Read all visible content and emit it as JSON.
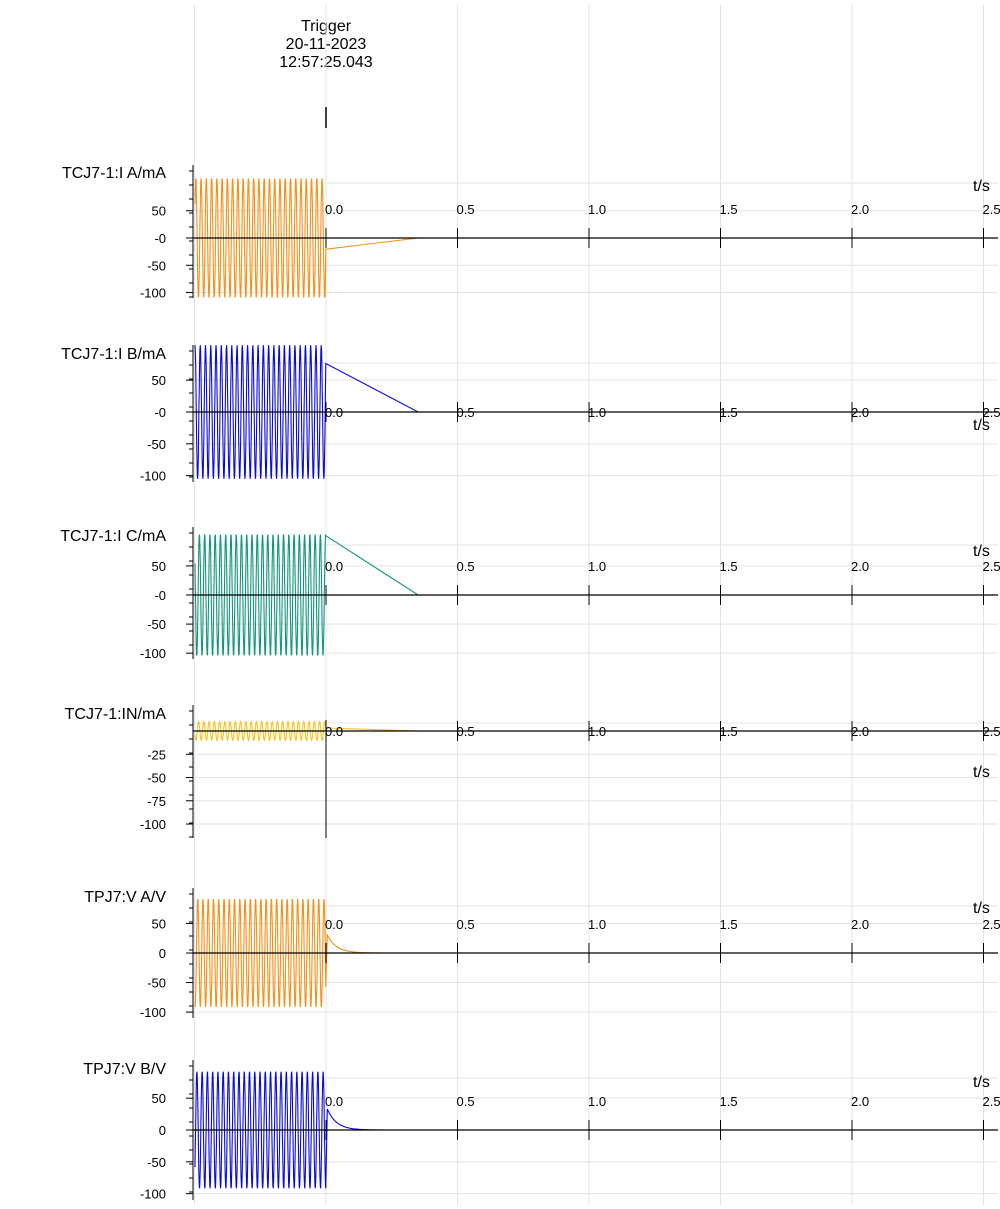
{
  "trigger": {
    "label": "Trigger",
    "date": "20-11-2023",
    "time": "12:57:25.043"
  },
  "colors": {
    "grid": "#e3e3e3",
    "axis": "#000000"
  },
  "chart_data": [
    {
      "type": "line",
      "ylabel": "TCJ7-1:I A/mA",
      "xlabel": "t/s",
      "x_ticks": [
        "0.0",
        "0.5",
        "1.0",
        "1.5",
        "2.0",
        "2.5"
      ],
      "y_ticks": [
        "50",
        "-0",
        "-50",
        "-100"
      ],
      "y_tick_values": [
        50,
        0,
        -50,
        -100
      ],
      "ylim": [
        -110,
        120
      ],
      "xlim": [
        -0.5,
        2.55
      ],
      "grid": true,
      "series": [
        {
          "color": "#f39019",
          "pre_amplitude": 110,
          "pre_offset": 0,
          "post_value": 0
        }
      ]
    },
    {
      "type": "line",
      "ylabel": "TCJ7-1:I B/mA",
      "xlabel": "t/s",
      "x_ticks": [
        "0.0",
        "0.5",
        "1.0",
        "1.5",
        "2.0",
        "2.5"
      ],
      "y_ticks": [
        "50",
        "-0",
        "-50",
        "-100"
      ],
      "y_tick_values": [
        50,
        0,
        -50,
        -100
      ],
      "ylim": [
        -110,
        120
      ],
      "xlim": [
        -0.5,
        2.55
      ],
      "grid": true,
      "series": [
        {
          "color": "#0a0ad6",
          "pre_amplitude": 105,
          "pre_offset": 0,
          "post_value": 0
        }
      ]
    },
    {
      "type": "line",
      "ylabel": "TCJ7-1:I C/mA",
      "xlabel": "t/s",
      "x_ticks": [
        "0.0",
        "0.5",
        "1.0",
        "1.5",
        "2.0",
        "2.5"
      ],
      "y_ticks": [
        "50",
        "-0",
        "-50",
        "-100"
      ],
      "y_tick_values": [
        50,
        0,
        -50,
        -100
      ],
      "ylim": [
        -110,
        120
      ],
      "xlim": [
        -0.5,
        2.55
      ],
      "grid": true,
      "series": [
        {
          "color": "#13957a",
          "pre_amplitude": 105,
          "pre_offset": 0,
          "post_value": 0
        }
      ]
    },
    {
      "type": "line",
      "ylabel": "TCJ7-1:IN/mA",
      "xlabel": "t/s",
      "x_ticks": [
        "0.0",
        "0.5",
        "1.0",
        "1.5",
        "2.0",
        "2.5"
      ],
      "y_ticks": [
        "-25",
        "-50",
        "-75",
        "-100"
      ],
      "y_tick_values": [
        -25,
        -50,
        -75,
        -100
      ],
      "ylim": [
        -115,
        30
      ],
      "xlim": [
        -0.5,
        2.55
      ],
      "grid": true,
      "series": [
        {
          "color": "#f5c518",
          "pre_amplitude": 10,
          "pre_offset": 0,
          "post_value": 0
        }
      ]
    },
    {
      "type": "line",
      "ylabel": "TPJ7:V A/V",
      "xlabel": "t/s",
      "x_ticks": [
        "0.0",
        "0.5",
        "1.0",
        "1.5",
        "2.0",
        "2.5"
      ],
      "y_ticks": [
        "50",
        "0",
        "-50",
        "-100"
      ],
      "y_tick_values": [
        50,
        0,
        -50,
        -100
      ],
      "ylim": [
        -110,
        115
      ],
      "xlim": [
        -0.5,
        2.55
      ],
      "grid": true,
      "series": [
        {
          "color": "#f39019",
          "pre_amplitude": 92,
          "pre_offset": 0,
          "post_value": 0,
          "decay_start": 35
        }
      ]
    },
    {
      "type": "line",
      "ylabel": "TPJ7:V B/V",
      "xlabel": "t/s",
      "x_ticks": [
        "0.0",
        "0.5",
        "1.0",
        "1.5",
        "2.0",
        "2.5"
      ],
      "y_ticks": [
        "50",
        "0",
        "-50",
        "-100"
      ],
      "y_tick_values": [
        50,
        0,
        -50,
        -100
      ],
      "ylim": [
        -110,
        115
      ],
      "xlim": [
        -0.5,
        2.55
      ],
      "grid": true,
      "series": [
        {
          "color": "#0a0ad6",
          "pre_amplitude": 92,
          "pre_offset": 0,
          "post_value": 0,
          "decay_start": 38
        }
      ]
    }
  ]
}
